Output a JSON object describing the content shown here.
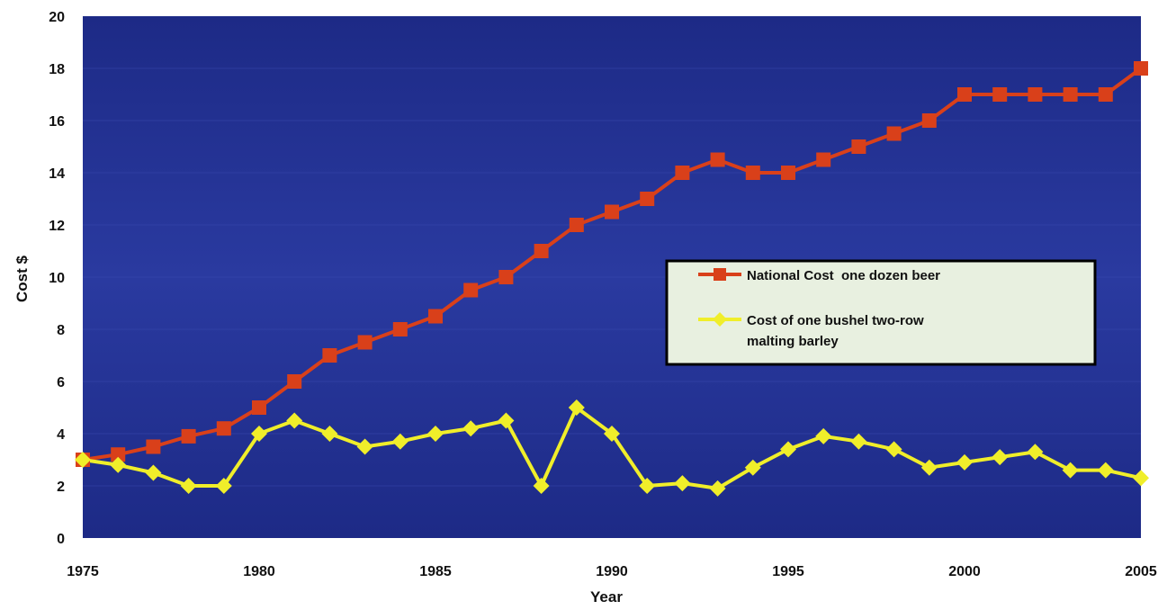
{
  "colors": {
    "plot_background": "#2a3aa0",
    "plot_edge": "#1d2a86",
    "beer_series": "#d9401a",
    "barley_series": "#f0ee2a",
    "legend_background": "#e8f0e0",
    "gridline": "#3a4ab0"
  },
  "chart_data": {
    "type": "line",
    "title": "",
    "xlabel": "Year",
    "ylabel": "Cost $",
    "xlim": [
      1975,
      2005
    ],
    "ylim": [
      0,
      20
    ],
    "x_ticks": [
      1975,
      1980,
      1985,
      1990,
      1995,
      2000,
      2005
    ],
    "y_ticks": [
      0,
      2,
      4,
      6,
      8,
      10,
      12,
      14,
      16,
      18,
      20
    ],
    "grid": false,
    "legend_position": "center-right",
    "x": [
      1975,
      1976,
      1977,
      1978,
      1979,
      1980,
      1981,
      1982,
      1983,
      1984,
      1985,
      1986,
      1987,
      1988,
      1989,
      1990,
      1991,
      1992,
      1993,
      1994,
      1995,
      1996,
      1997,
      1998,
      1999,
      2000,
      2001,
      2002,
      2003,
      2004,
      2005
    ],
    "series": [
      {
        "name": "National Cost  one dozen beer",
        "marker": "square",
        "values": [
          3.0,
          3.2,
          3.5,
          3.9,
          4.2,
          5.0,
          6.0,
          7.0,
          7.5,
          8.0,
          8.5,
          9.5,
          10.0,
          11.0,
          12.0,
          12.5,
          13.0,
          14.0,
          14.5,
          14.0,
          14.0,
          14.5,
          15.0,
          15.5,
          16.0,
          17.0,
          17.0,
          17.0,
          17.0,
          17.0,
          18.0
        ]
      },
      {
        "name": "Cost of one bushel two-row malting barley",
        "name_lines": [
          "Cost of one bushel two-row",
          "malting barley"
        ],
        "marker": "diamond",
        "values": [
          3.0,
          2.8,
          2.5,
          2.0,
          2.0,
          4.0,
          4.5,
          4.0,
          3.5,
          3.7,
          4.0,
          4.2,
          4.5,
          2.0,
          5.0,
          4.0,
          2.0,
          2.1,
          1.9,
          2.7,
          3.4,
          3.9,
          3.7,
          3.4,
          2.7,
          2.9,
          3.1,
          3.3,
          2.6,
          2.6,
          2.3
        ]
      }
    ]
  }
}
